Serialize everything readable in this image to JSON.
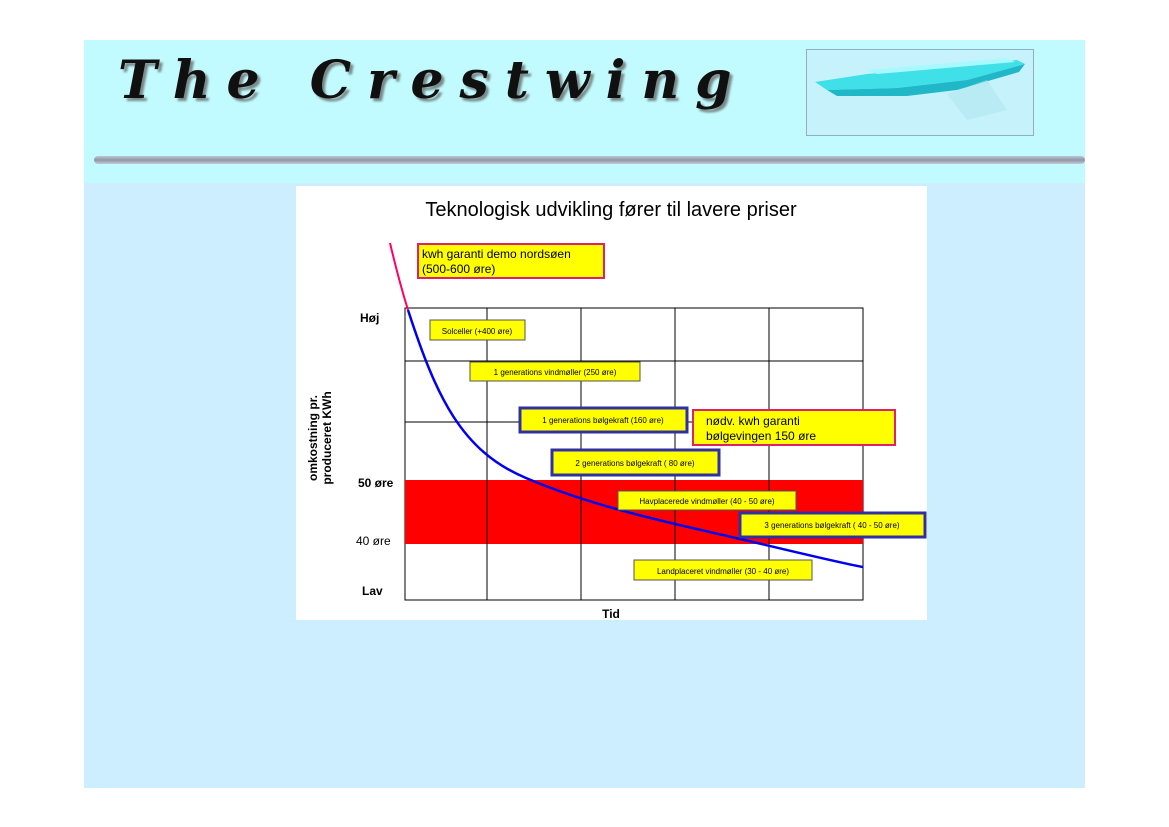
{
  "header": {
    "title": "The Crestwing"
  },
  "chart_data": {
    "type": "line",
    "title": "Teknologisk udvikling fører til lavere priser",
    "xlabel": "Tid",
    "ylabel_line1": "omkostning pr.",
    "ylabel_line2": "produceret KWh",
    "y_tick_labels": [
      "Høj",
      "50 øre",
      "40 øre",
      "Lav"
    ],
    "grid": true,
    "colors": {
      "curve": "#0000ee",
      "curve_extension": "#ff0066",
      "band": "#ff0000",
      "label_fill": "#ffff00",
      "border_blue": "#3030a0",
      "border_pink": "#e0206a"
    },
    "band": {
      "label_low": "40 øre",
      "label_high": "50 øre"
    },
    "annotations": {
      "demo": [
        "kwh garanti demo nordsøen",
        "(500-600 øre)"
      ],
      "solceller": "Solceller (+400 øre)",
      "vind1": "1 generations vindmøller (250 øre)",
      "bolge1": "1 generations bølgekraft (160 øre)",
      "nodv": [
        "nødv. kwh garanti",
        "bølgevingen  150 øre"
      ],
      "bolge2": "2 generations bølgekraft ( 80 øre)",
      "havplacerede": "Havplacerede vindmøller (40 - 50 øre)",
      "bolge3": "3 generations bølgekraft ( 40 - 50 øre)",
      "landplaceret": "Landplaceret vindmøller (30 - 40 øre)"
    }
  }
}
